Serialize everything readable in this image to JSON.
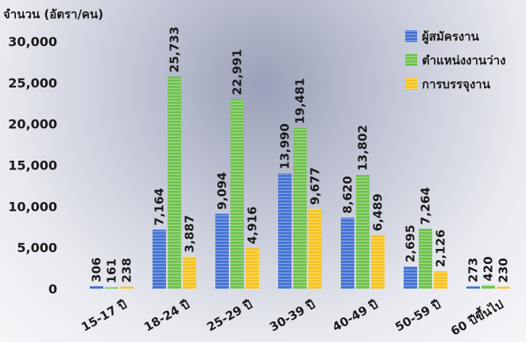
{
  "chart_data": {
    "type": "bar",
    "ylabel": "จำนวน (อัตรา/คน)",
    "ylim": [
      0,
      30000
    ],
    "yticks": [
      "0",
      "5,000",
      "10,000",
      "15,000",
      "20,000",
      "25,000",
      "30,000"
    ],
    "categories": [
      "15-17 ปี",
      "18-24 ปี",
      "25-29 ปี",
      "30-39 ปี",
      "40-49 ปี",
      "50-59 ปี",
      "60 ปีขึ้นไป"
    ],
    "series": [
      {
        "name": "ผู้สมัครงาน",
        "color": "#3f6fd1",
        "values": [
          306,
          7164,
          9094,
          13990,
          8620,
          2695,
          273
        ]
      },
      {
        "name": "ตำแหน่งงานว่าง",
        "color": "#6cc04a",
        "values": [
          161,
          25733,
          22991,
          19481,
          13802,
          7264,
          420
        ]
      },
      {
        "name": "การบรรจุงาน",
        "color": "#f7c21a",
        "values": [
          238,
          3887,
          4916,
          9677,
          6489,
          2126,
          230
        ]
      }
    ],
    "value_labels": [
      [
        "306",
        "161",
        "238"
      ],
      [
        "7,164",
        "25,733",
        "3,887"
      ],
      [
        "9,094",
        "22,991",
        "4,916"
      ],
      [
        "13,990",
        "19,481",
        "9,677"
      ],
      [
        "8,620",
        "13,802",
        "6,489"
      ],
      [
        "2,695",
        "7,264",
        "2,126"
      ],
      [
        "273",
        "420",
        "230"
      ]
    ],
    "legend_position": "top-right",
    "grid": false
  }
}
